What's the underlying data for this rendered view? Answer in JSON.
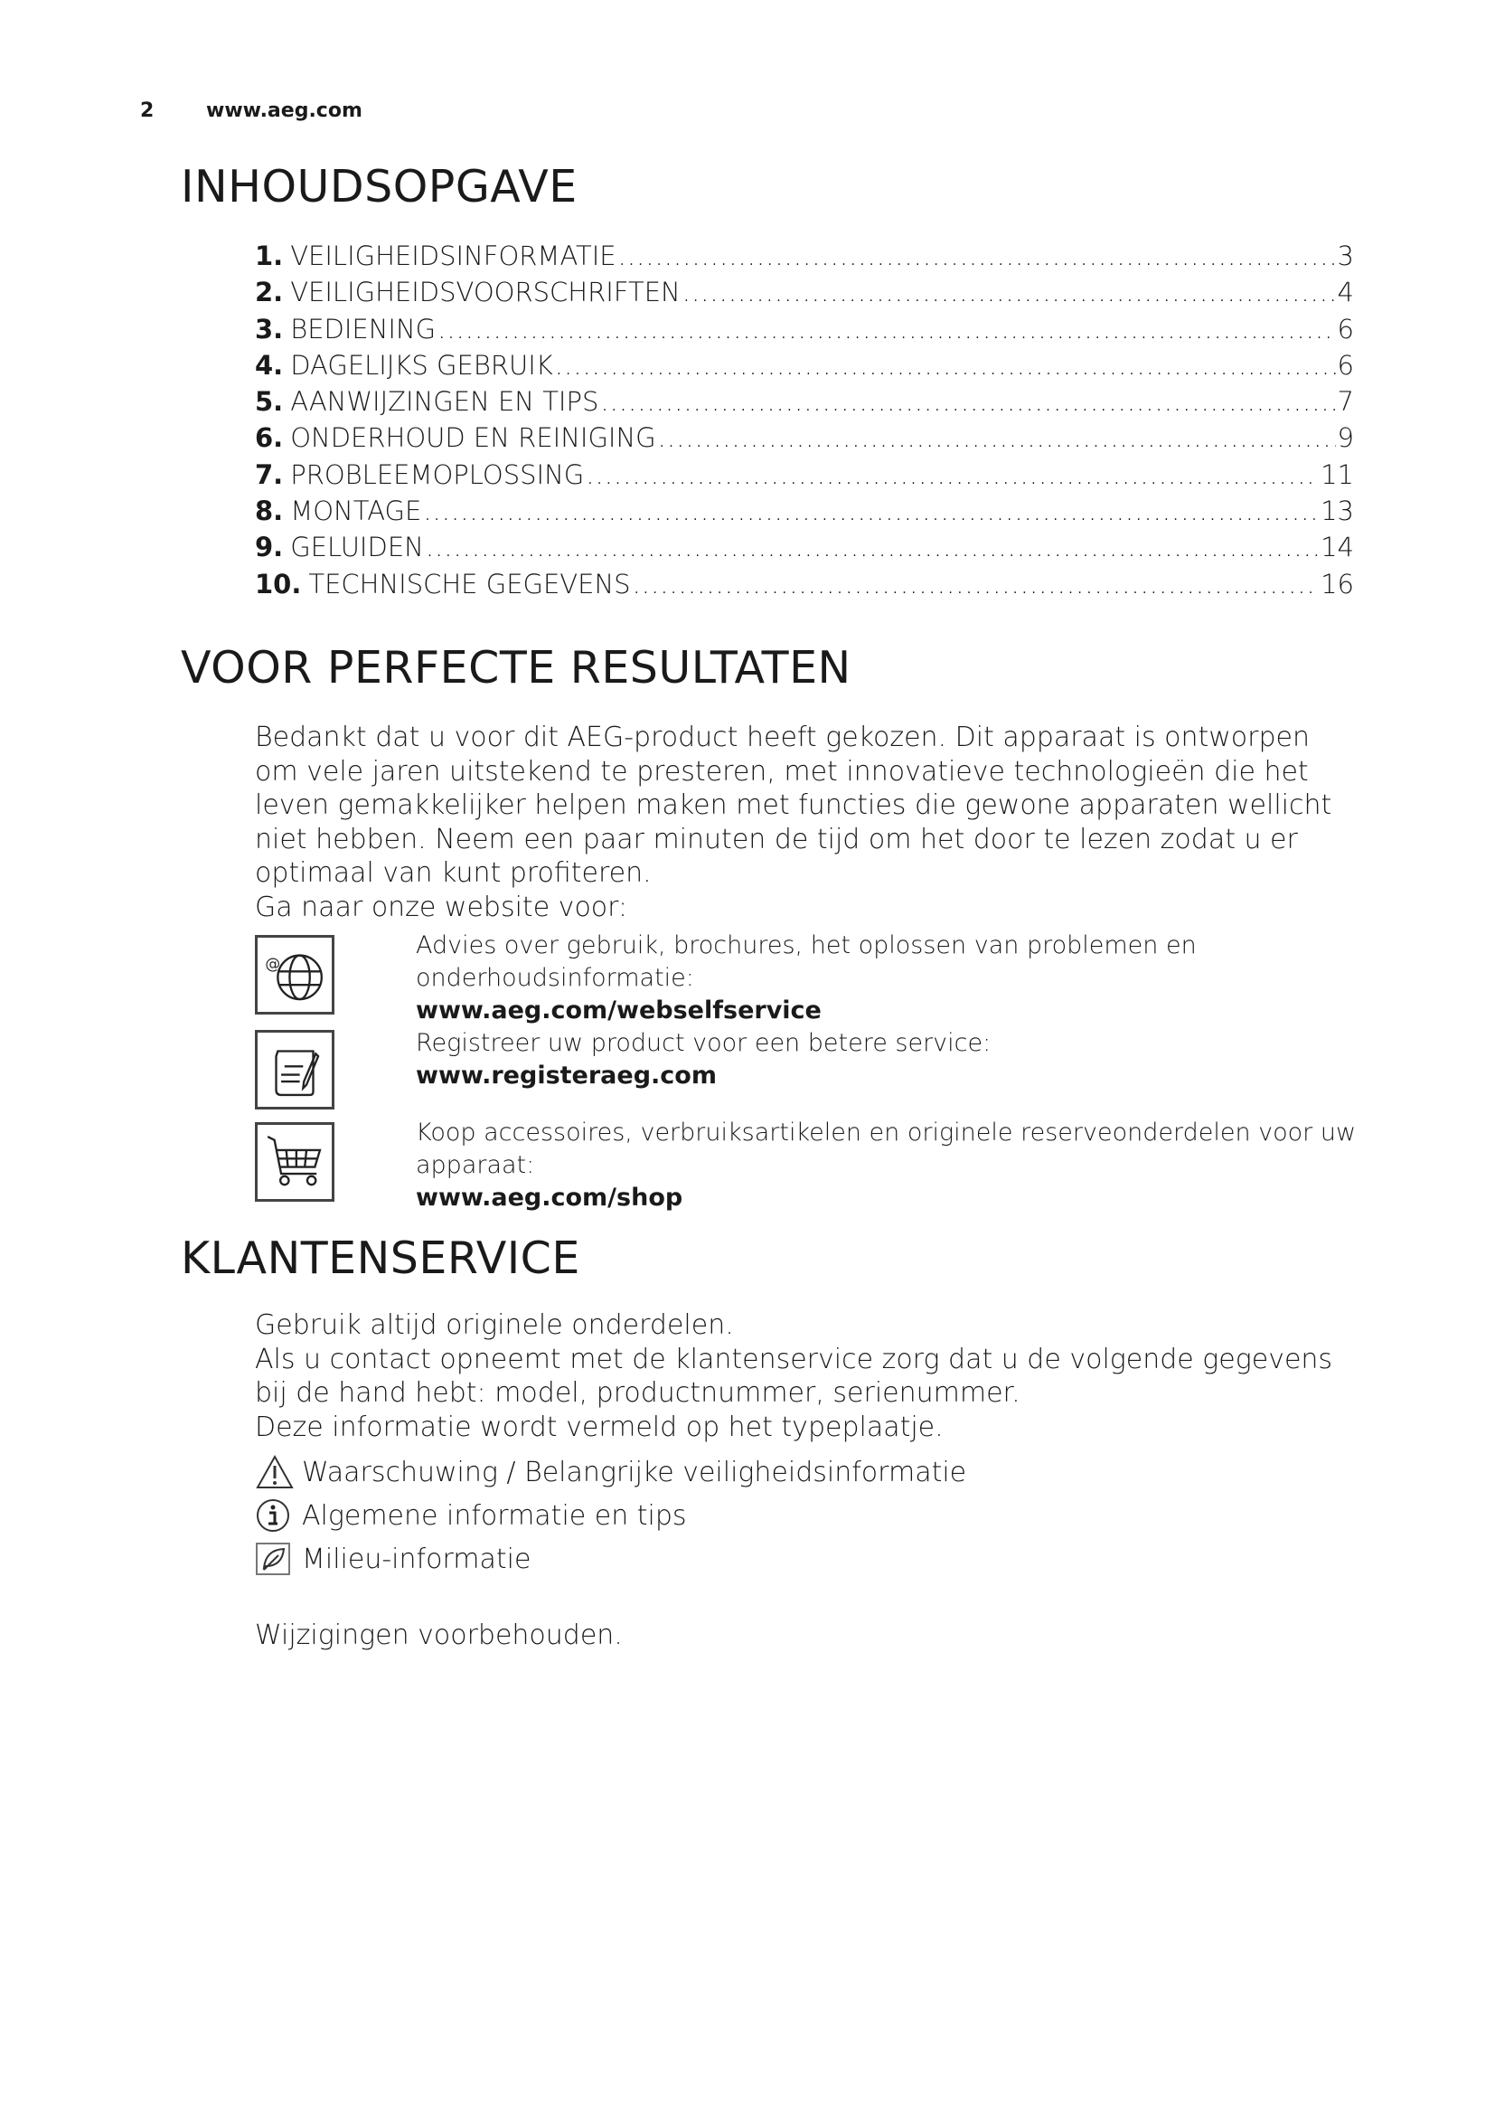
{
  "header": {
    "page_number": "2",
    "url": "www.aeg.com"
  },
  "toc": {
    "title": "INHOUDSOPGAVE",
    "items": [
      {
        "num": "1.",
        "label": "VEILIGHEIDSINFORMATIE",
        "page": "3"
      },
      {
        "num": "2.",
        "label": "VEILIGHEIDSVOORSCHRIFTEN",
        "page": "4"
      },
      {
        "num": "3.",
        "label": "BEDIENING",
        "page": "6"
      },
      {
        "num": "4.",
        "label": "DAGELIJKS GEBRUIK",
        "page": "6"
      },
      {
        "num": "5.",
        "label": "AANWIJZINGEN EN TIPS",
        "page": "7"
      },
      {
        "num": "6.",
        "label": "ONDERHOUD EN REINIGING",
        "page": "9"
      },
      {
        "num": "7.",
        "label": "PROBLEEMOPLOSSING",
        "page": "11"
      },
      {
        "num": "8.",
        "label": "MONTAGE",
        "page": "13"
      },
      {
        "num": "9.",
        "label": "GELUIDEN",
        "page": "14"
      },
      {
        "num": "10.",
        "label": "TECHNISCHE GEGEVENS",
        "page": "16"
      }
    ]
  },
  "perfect": {
    "title": "VOOR PERFECTE RESULTATEN",
    "lines": [
      "Bedankt dat u voor dit AEG-product heeft gekozen. Dit apparaat is ontworpen",
      "om vele jaren uitstekend te presteren, met innovatieve technologieën die het",
      "leven gemakkelijker helpen maken met functies die gewone apparaten wellicht",
      "niet hebben. Neem een paar minuten de tijd om het door te lezen zodat u er",
      "optimaal van kunt profiteren.",
      "Ga naar onze website voor:"
    ],
    "links": [
      {
        "icon": "globe-icon",
        "text": "Advies over gebruik, brochures, het oplossen van problemen en onderhoudsinformatie:",
        "url": "www.aeg.com/webselfservice"
      },
      {
        "icon": "register-icon",
        "text": "Registreer uw product voor een betere service:",
        "url": "www.registeraeg.com"
      },
      {
        "icon": "cart-icon",
        "text": "Koop accessoires, verbruiksartikelen en originele reserveonderdelen voor uw apparaat:",
        "url": "www.aeg.com/shop"
      }
    ]
  },
  "service": {
    "title": "KLANTENSERVICE",
    "lines": [
      "Gebruik altijd originele onderdelen.",
      "Als u contact opneemt met de klantenservice zorg dat u de volgende gegevens",
      "bij de hand hebt: model, productnummer, serienummer.",
      "Deze informatie wordt vermeld op het typeplaatje."
    ],
    "legend": [
      {
        "icon": "warning-icon",
        "label": "Waarschuwing / Belangrijke veiligheidsinformatie"
      },
      {
        "icon": "info-icon",
        "label": "Algemene informatie en tips"
      },
      {
        "icon": "leaf-icon",
        "label": "Milieu-informatie"
      }
    ],
    "footer": "Wijzigingen voorbehouden."
  }
}
